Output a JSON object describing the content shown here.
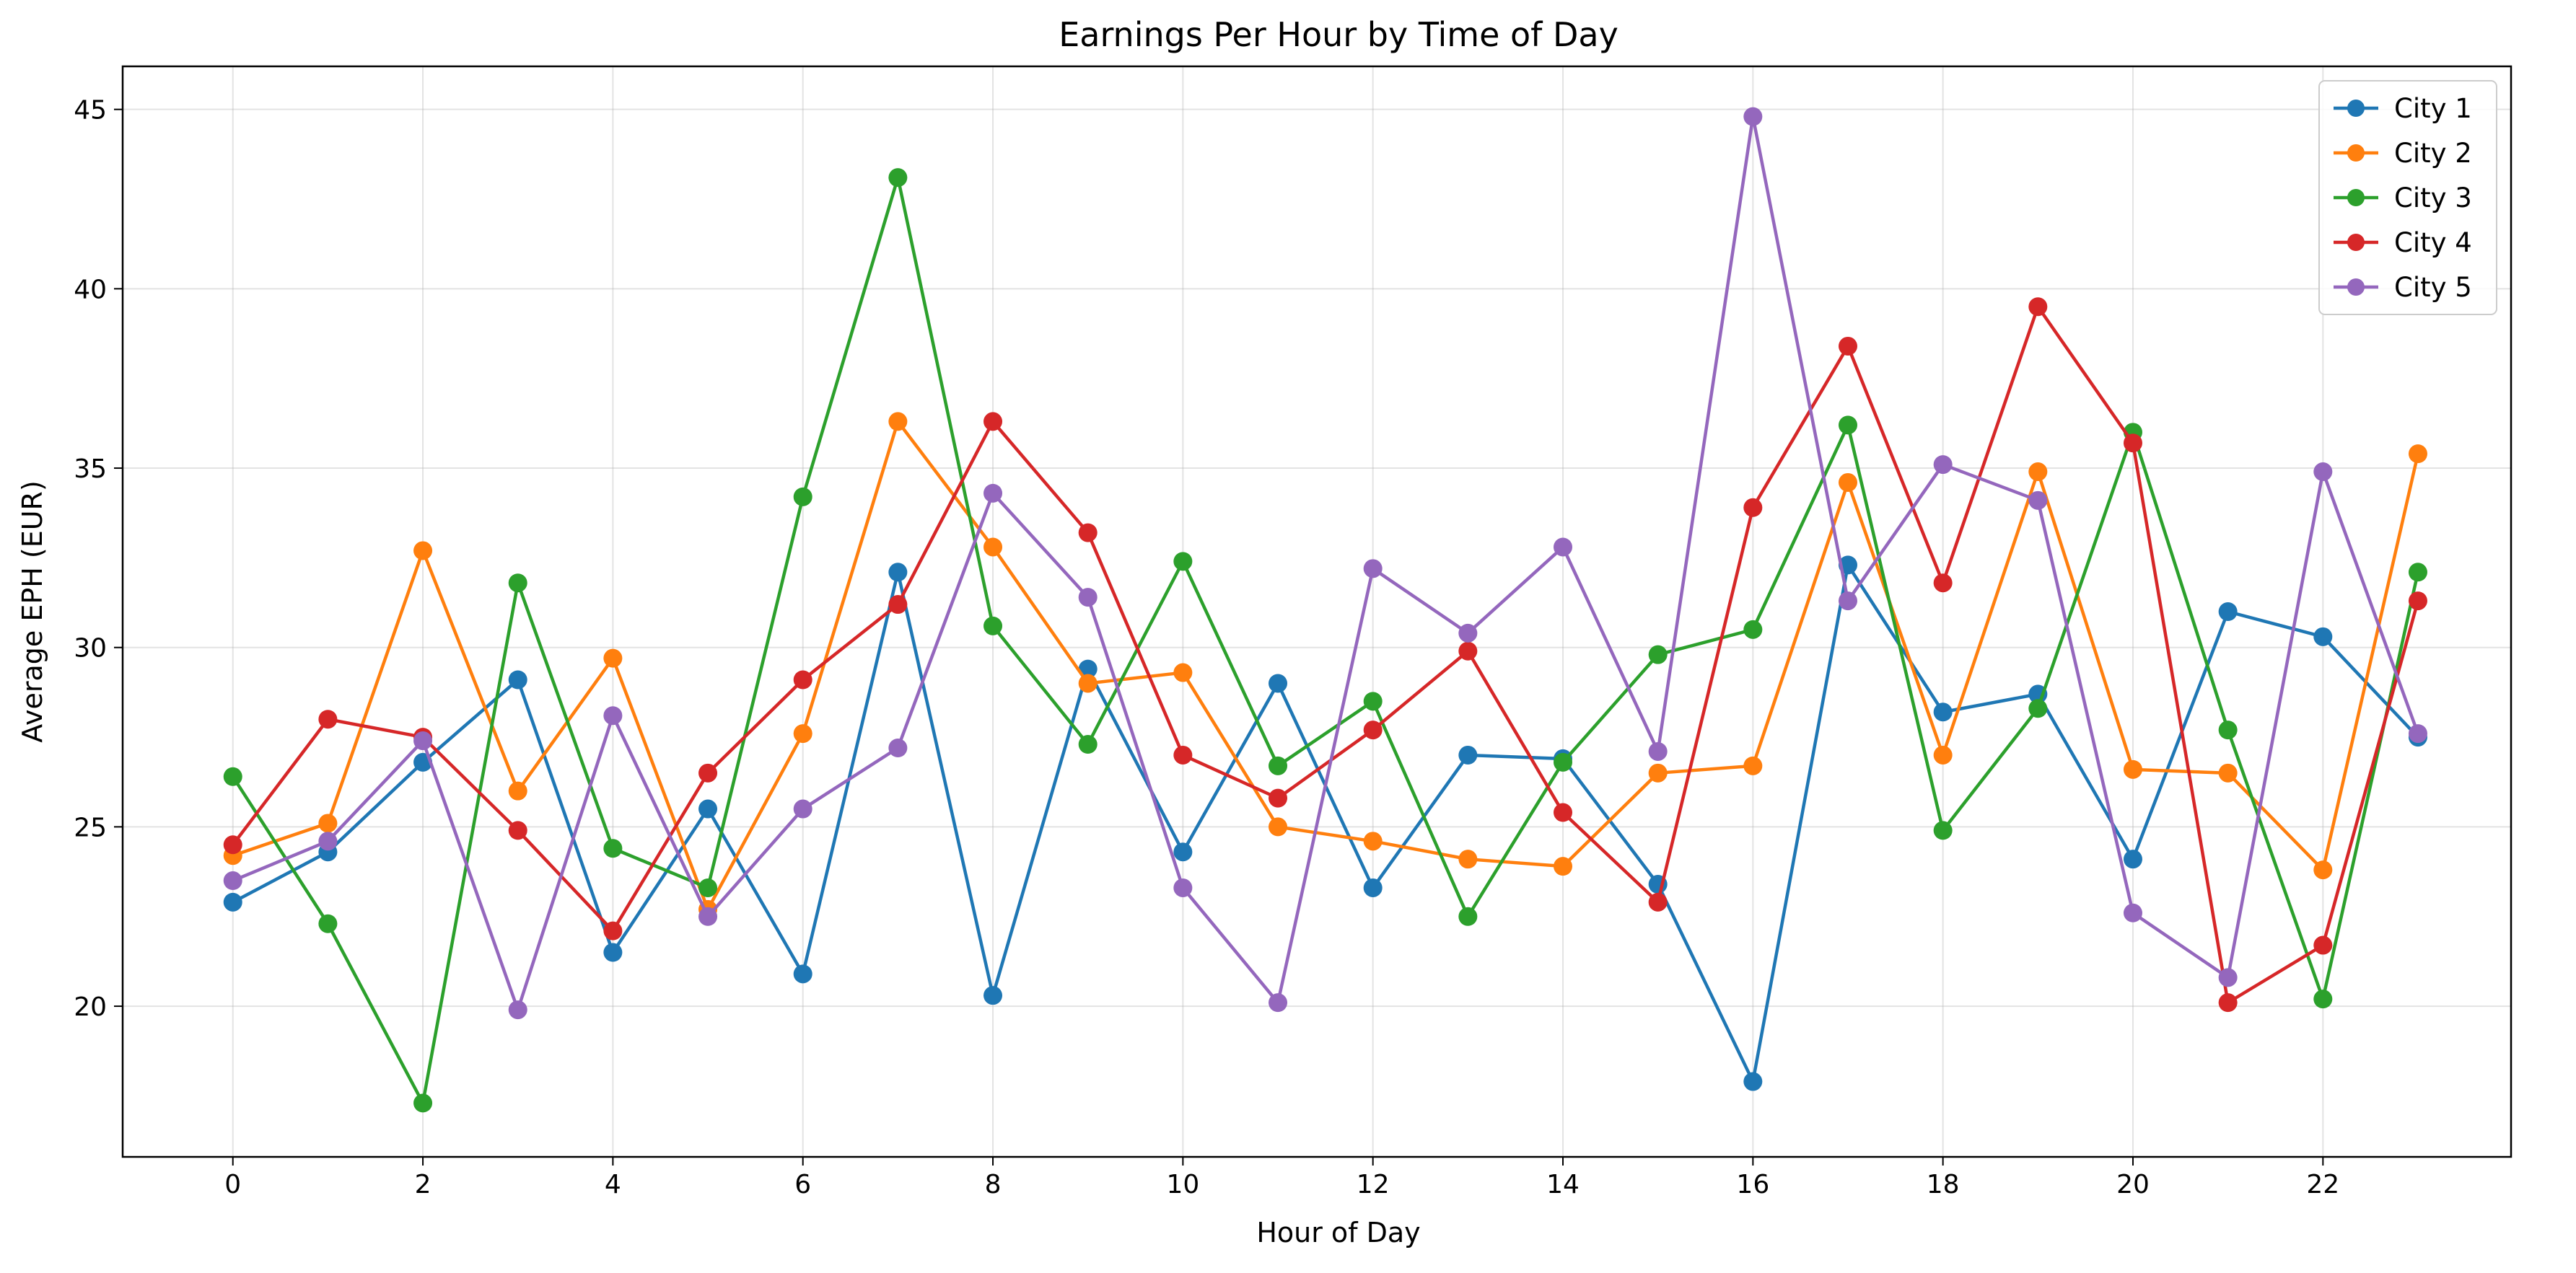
{
  "chart_data": {
    "type": "line",
    "title": "Earnings Per Hour by Time of Day",
    "xlabel": "Hour of Day",
    "ylabel": "Average EPH (EUR)",
    "x": [
      0,
      1,
      2,
      3,
      4,
      5,
      6,
      7,
      8,
      9,
      10,
      11,
      12,
      13,
      14,
      15,
      16,
      17,
      18,
      19,
      20,
      21,
      22,
      23
    ],
    "xlim": [
      -1.16,
      23.98
    ],
    "ylim": [
      15.8,
      46.2
    ],
    "xticks": [
      0,
      2,
      4,
      6,
      8,
      10,
      12,
      14,
      16,
      18,
      20,
      22
    ],
    "yticks": [
      20,
      25,
      30,
      35,
      40,
      45
    ],
    "grid": true,
    "legend_position": "top-right",
    "series": [
      {
        "name": "City 1",
        "color": "#1f77b4",
        "values": [
          22.9,
          24.3,
          26.8,
          29.1,
          21.5,
          25.5,
          20.9,
          32.1,
          20.3,
          29.4,
          24.3,
          29.0,
          23.3,
          27.0,
          26.9,
          23.4,
          17.9,
          32.3,
          28.2,
          28.7,
          24.1,
          31.0,
          30.3,
          27.5
        ]
      },
      {
        "name": "City 2",
        "color": "#ff7f0e",
        "values": [
          24.2,
          25.1,
          32.7,
          26.0,
          29.7,
          22.7,
          27.6,
          36.3,
          32.8,
          29.0,
          29.3,
          25.0,
          24.6,
          24.1,
          23.9,
          26.5,
          26.7,
          34.6,
          27.0,
          34.9,
          26.6,
          26.5,
          23.8,
          35.4
        ]
      },
      {
        "name": "City 3",
        "color": "#2ca02c",
        "values": [
          26.4,
          22.3,
          17.3,
          31.8,
          24.4,
          23.3,
          34.2,
          43.1,
          30.6,
          27.3,
          32.4,
          26.7,
          28.5,
          22.5,
          26.8,
          29.8,
          30.5,
          36.2,
          24.9,
          28.3,
          36.0,
          27.7,
          20.2,
          32.1
        ]
      },
      {
        "name": "City 4",
        "color": "#d62728",
        "values": [
          24.5,
          28.0,
          27.5,
          24.9,
          22.1,
          26.5,
          29.1,
          31.2,
          36.3,
          33.2,
          27.0,
          25.8,
          27.7,
          29.9,
          25.4,
          22.9,
          33.9,
          38.4,
          31.8,
          39.5,
          35.7,
          20.1,
          21.7,
          31.3
        ]
      },
      {
        "name": "City 5",
        "color": "#9467bd",
        "values": [
          23.5,
          24.6,
          27.4,
          19.9,
          28.1,
          22.5,
          25.5,
          27.2,
          34.3,
          31.4,
          23.3,
          20.1,
          32.2,
          30.4,
          32.8,
          27.1,
          44.8,
          31.3,
          35.1,
          34.1,
          22.6,
          20.8,
          34.9,
          27.6
        ]
      }
    ]
  }
}
